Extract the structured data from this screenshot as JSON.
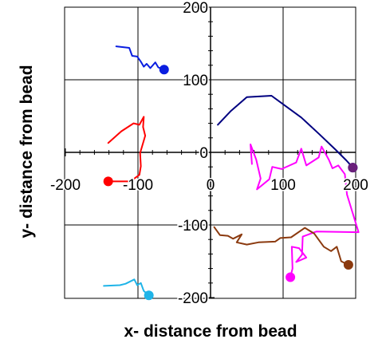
{
  "chart_data": {
    "type": "scatter",
    "title": "",
    "xlabel": "x- distance from bead",
    "ylabel": "y- distance from bead",
    "xlim": [
      -200,
      200
    ],
    "ylim": [
      -200,
      200
    ],
    "xticks": [
      -200,
      -100,
      0,
      100,
      200
    ],
    "yticks": [
      200,
      100,
      0,
      -100,
      -200
    ],
    "tick_labels": {
      "x": [
        "-200",
        "-100",
        "0",
        "100",
        "200"
      ],
      "y": [
        "200",
        "100",
        "0",
        "-100",
        "-200"
      ]
    },
    "grid": true,
    "series": [
      {
        "color": "#0a1ee0",
        "points": [
          [
            -130,
            146
          ],
          [
            -112,
            144
          ],
          [
            -108,
            133
          ],
          [
            -101,
            132
          ],
          [
            -96,
            125
          ],
          [
            -92,
            118
          ],
          [
            -88,
            122
          ],
          [
            -83,
            116
          ],
          [
            -76,
            124
          ],
          [
            -72,
            117
          ],
          [
            -64,
            114
          ]
        ]
      },
      {
        "color": "#ff0000",
        "points": [
          [
            -141,
            13
          ],
          [
            -123,
            29
          ],
          [
            -106,
            40
          ],
          [
            -98,
            38
          ],
          [
            -92,
            49
          ],
          [
            -93,
            35
          ],
          [
            -90,
            23
          ],
          [
            -97,
            -1
          ],
          [
            -96,
            -19
          ],
          [
            -98,
            -31
          ],
          [
            -105,
            -36
          ],
          [
            -113,
            -40
          ],
          [
            -124,
            -40
          ],
          [
            -141,
            -40
          ]
        ]
      },
      {
        "color": "#1fb4e8",
        "points": [
          [
            -147,
            -184
          ],
          [
            -125,
            -183
          ],
          [
            -117,
            -181
          ],
          [
            -105,
            -175
          ],
          [
            -101,
            -183
          ],
          [
            -96,
            -180
          ],
          [
            -92,
            -191
          ],
          [
            -85,
            -197
          ]
        ]
      },
      {
        "color": "#000080",
        "points": [
          [
            10,
            38
          ],
          [
            28,
            57
          ],
          [
            50,
            76
          ],
          [
            84,
            78
          ],
          [
            125,
            48
          ],
          [
            150,
            25
          ],
          [
            172,
            4
          ],
          [
            187,
            -11
          ],
          [
            196,
            -21
          ]
        ]
      },
      {
        "color": "#6a1f7a",
        "points": [
          [
            196,
            -21
          ]
        ]
      },
      {
        "color": "#ff00ff",
        "points": [
          [
            57,
            -16
          ],
          [
            55,
            11
          ],
          [
            63,
            -10
          ],
          [
            69,
            -36
          ],
          [
            64,
            -51
          ],
          [
            81,
            -37
          ],
          [
            85,
            -20
          ],
          [
            98,
            -23
          ],
          [
            109,
            -18
          ],
          [
            118,
            -14
          ],
          [
            125,
            5
          ],
          [
            132,
            -18
          ],
          [
            149,
            -7
          ],
          [
            153,
            8
          ],
          [
            163,
            -10
          ],
          [
            168,
            -22
          ],
          [
            176,
            -18
          ],
          [
            185,
            -30
          ],
          [
            188,
            -58
          ],
          [
            204,
            -110
          ],
          [
            146,
            -109
          ],
          [
            127,
            -116
          ],
          [
            126,
            -141
          ],
          [
            118,
            -151
          ],
          [
            132,
            -145
          ],
          [
            122,
            -132
          ],
          [
            112,
            -130
          ],
          [
            113,
            -160
          ],
          [
            110,
            -172
          ]
        ]
      },
      {
        "color": "#8b3a0f",
        "points": [
          [
            5,
            -103
          ],
          [
            13,
            -114
          ],
          [
            24,
            -115
          ],
          [
            31,
            -119
          ],
          [
            43,
            -113
          ],
          [
            36,
            -124
          ],
          [
            50,
            -127
          ],
          [
            66,
            -124
          ],
          [
            89,
            -123
          ],
          [
            96,
            -118
          ],
          [
            111,
            -117
          ],
          [
            130,
            -104
          ],
          [
            143,
            -112
          ],
          [
            156,
            -130
          ],
          [
            166,
            -136
          ],
          [
            174,
            -130
          ],
          [
            180,
            -150
          ],
          [
            190,
            -155
          ]
        ]
      }
    ]
  }
}
